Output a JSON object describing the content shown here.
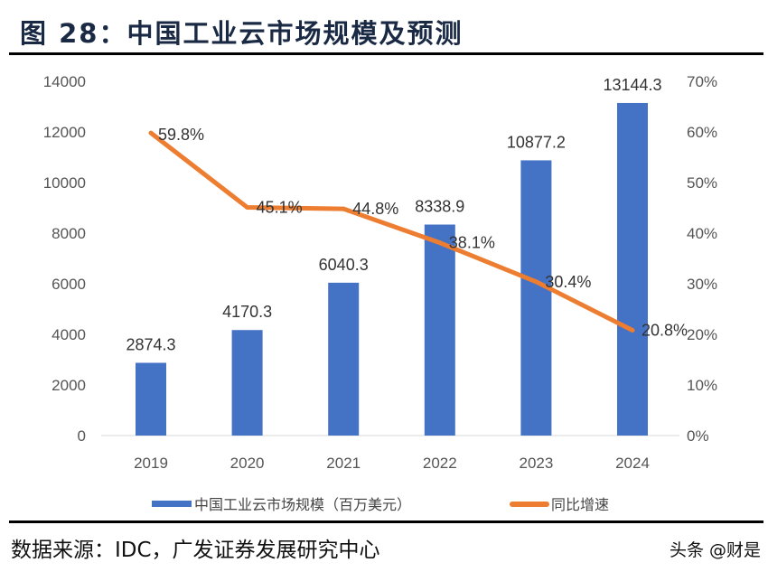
{
  "title": "图 28：中国工业云市场规模及预测",
  "source": "数据来源：IDC，广发证券发展研究中心",
  "watermark": "头条 @财是",
  "chart_data": {
    "type": "bar+line",
    "categories": [
      "2019",
      "2020",
      "2021",
      "2022",
      "2023",
      "2024"
    ],
    "series": [
      {
        "name": "中国工业云市场规模（百万美元）",
        "type": "bar",
        "axis": "left",
        "color": "#4472C4",
        "values": [
          2874.3,
          4170.3,
          6040.3,
          8338.9,
          10877.2,
          13144.3
        ],
        "labels": [
          "2874.3",
          "4170.3",
          "6040.3",
          "8338.9",
          "10877.2",
          "13144.3"
        ]
      },
      {
        "name": "同比增速",
        "type": "line",
        "axis": "right",
        "color": "#ED7D31",
        "values": [
          59.8,
          45.1,
          44.8,
          38.1,
          30.4,
          20.8
        ],
        "labels": [
          "59.8%",
          "45.1%",
          "44.8%",
          "38.1%",
          "30.4%",
          "20.8%"
        ]
      }
    ],
    "left_axis": {
      "range": [
        0,
        14000
      ],
      "ticks": [
        "0",
        "2000",
        "4000",
        "6000",
        "8000",
        "10000",
        "12000",
        "14000"
      ]
    },
    "right_axis": {
      "range": [
        0,
        70
      ],
      "ticks": [
        "0%",
        "10%",
        "20%",
        "30%",
        "40%",
        "50%",
        "60%",
        "70%"
      ]
    },
    "grid": false,
    "legend": "bottom"
  }
}
